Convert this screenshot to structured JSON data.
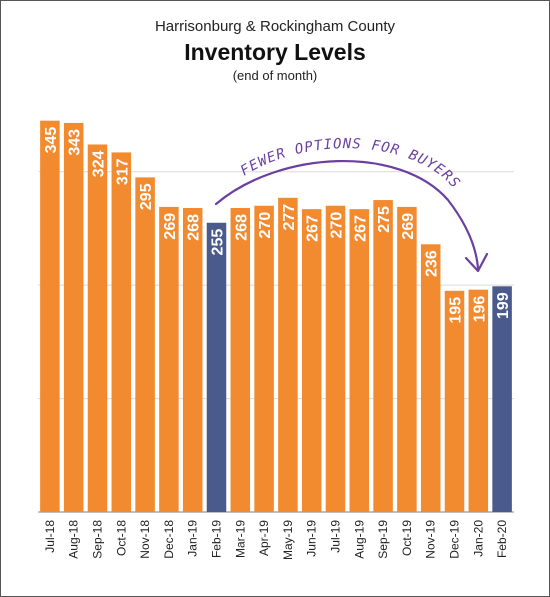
{
  "header": {
    "pretitle": "Harrisonburg & Rockingham County",
    "title": "Inventory Levels",
    "subtitle": "(end of month)"
  },
  "annotation": {
    "text": "FEWER OPTIONS FOR BUYERS",
    "color": "#6b3fa0"
  },
  "colors": {
    "bar": "#F28A30",
    "highlight": "#4A5A8C",
    "grid": "#d9d9d9",
    "axis": "#7f7f7f"
  },
  "chart_data": {
    "type": "bar",
    "title": "Inventory Levels",
    "subtitle": "(end of month)",
    "categories": [
      "Jul-18",
      "Aug-18",
      "Sep-18",
      "Oct-18",
      "Nov-18",
      "Dec-18",
      "Jan-19",
      "Feb-19",
      "Mar-19",
      "Apr-19",
      "May-19",
      "Jun-19",
      "Jul-19",
      "Aug-19",
      "Sep-19",
      "Oct-19",
      "Nov-19",
      "Dec-19",
      "Jan-20",
      "Feb-20"
    ],
    "values": [
      345,
      343,
      324,
      317,
      295,
      269,
      268,
      255,
      268,
      270,
      277,
      267,
      270,
      267,
      275,
      269,
      236,
      195,
      196,
      199
    ],
    "highlight_categories": [
      "Feb-19",
      "Feb-20"
    ],
    "ylim": [
      0,
      350
    ],
    "grid": true,
    "data_labels": true,
    "xlabel": "",
    "ylabel": ""
  }
}
